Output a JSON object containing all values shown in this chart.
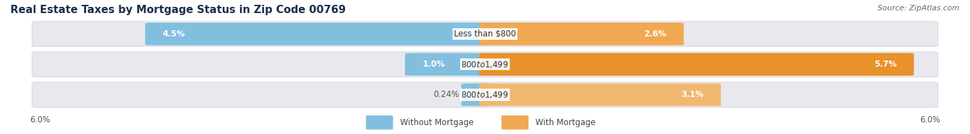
{
  "title": "Real Estate Taxes by Mortgage Status in Zip Code 00769",
  "source": "Source: ZipAtlas.com",
  "rows": [
    {
      "label": "Less than $800",
      "without_mortgage": 4.5,
      "with_mortgage": 2.6
    },
    {
      "label": "$800 to $1,499",
      "without_mortgage": 1.0,
      "with_mortgage": 5.7
    },
    {
      "label": "$800 to $1,499",
      "without_mortgage": 0.24,
      "with_mortgage": 3.1
    }
  ],
  "max_val": 6.0,
  "color_without": "#82BFDF",
  "color_with": "#F0A952",
  "color_with_row2": "#E8922A",
  "color_with_row3": "#F0B870",
  "bar_bg": "#E8E8EE",
  "title_color": "#1A2E4A",
  "source_color": "#666666",
  "label_color_on_bar": "#FFFFFF",
  "label_color_off_bar": "#555555",
  "value_color_on_bar": "#FFFFFF",
  "value_color_off_bar": "#555555",
  "title_fontsize": 11,
  "source_fontsize": 8,
  "label_fontsize": 8.5,
  "value_fontsize": 8.5,
  "tick_fontsize": 8.5,
  "legend_fontsize": 8.5
}
